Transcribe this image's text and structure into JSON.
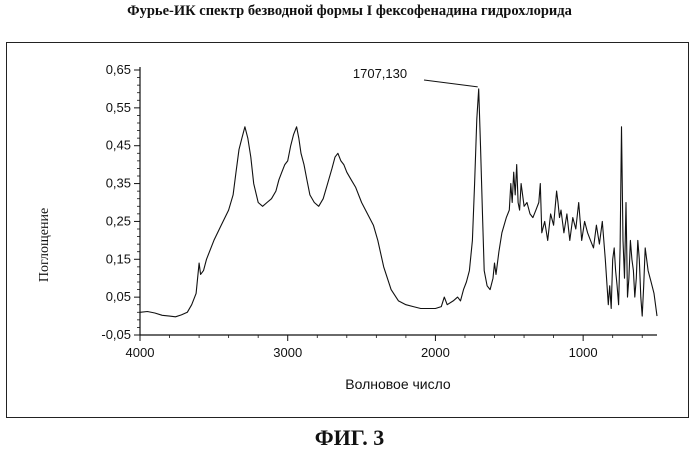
{
  "page_title": "Фурье-ИК спектр безводной формы I фексофенадина гидрохлорида",
  "figure_label": "ФИГ. 3",
  "chart_data": {
    "type": "line",
    "title": "Фурье-ИК спектр безводной формы I фексофенадина гидрохлорида",
    "xlabel": "Волновое число",
    "ylabel": "Поглощение",
    "xlim": [
      4000,
      500
    ],
    "ylim": [
      -0.05,
      0.65
    ],
    "x_reversed": true,
    "x_ticks": [
      {
        "value": 4000,
        "label": "4000"
      },
      {
        "value": 3000,
        "label": "3000"
      },
      {
        "value": 2000,
        "label": "2000"
      },
      {
        "value": 1000,
        "label": "1000"
      }
    ],
    "y_ticks": [
      {
        "value": 0.65,
        "label": "0,65"
      },
      {
        "value": 0.55,
        "label": "0,55"
      },
      {
        "value": 0.45,
        "label": "0,45"
      },
      {
        "value": 0.35,
        "label": "0,35"
      },
      {
        "value": 0.25,
        "label": "0,25"
      },
      {
        "value": 0.15,
        "label": "0,15"
      },
      {
        "value": 0.05,
        "label": "0,05"
      },
      {
        "value": -0.05,
        "label": "-0,05"
      }
    ],
    "annotation": {
      "text": "1707,130",
      "x": 1707,
      "y": 0.6
    },
    "grid": false,
    "series": [
      {
        "color": "#111111",
        "points": [
          [
            4000,
            0.01
          ],
          [
            3950,
            0.012
          ],
          [
            3900,
            0.008
          ],
          [
            3850,
            0.002
          ],
          [
            3800,
            0.0
          ],
          [
            3760,
            -0.002
          ],
          [
            3720,
            0.003
          ],
          [
            3680,
            0.01
          ],
          [
            3650,
            0.03
          ],
          [
            3620,
            0.06
          ],
          [
            3610,
            0.1
          ],
          [
            3600,
            0.14
          ],
          [
            3590,
            0.11
          ],
          [
            3570,
            0.12
          ],
          [
            3550,
            0.15
          ],
          [
            3500,
            0.2
          ],
          [
            3450,
            0.24
          ],
          [
            3400,
            0.28
          ],
          [
            3370,
            0.32
          ],
          [
            3350,
            0.38
          ],
          [
            3330,
            0.44
          ],
          [
            3310,
            0.47
          ],
          [
            3290,
            0.5
          ],
          [
            3270,
            0.47
          ],
          [
            3250,
            0.42
          ],
          [
            3230,
            0.35
          ],
          [
            3200,
            0.3
          ],
          [
            3170,
            0.29
          ],
          [
            3140,
            0.3
          ],
          [
            3110,
            0.31
          ],
          [
            3080,
            0.33
          ],
          [
            3060,
            0.36
          ],
          [
            3040,
            0.38
          ],
          [
            3020,
            0.4
          ],
          [
            3000,
            0.41
          ],
          [
            2980,
            0.45
          ],
          [
            2960,
            0.48
          ],
          [
            2940,
            0.5
          ],
          [
            2925,
            0.47
          ],
          [
            2910,
            0.43
          ],
          [
            2890,
            0.4
          ],
          [
            2870,
            0.36
          ],
          [
            2850,
            0.32
          ],
          [
            2820,
            0.3
          ],
          [
            2790,
            0.29
          ],
          [
            2760,
            0.31
          ],
          [
            2730,
            0.35
          ],
          [
            2700,
            0.39
          ],
          [
            2680,
            0.42
          ],
          [
            2660,
            0.43
          ],
          [
            2640,
            0.41
          ],
          [
            2620,
            0.4
          ],
          [
            2600,
            0.38
          ],
          [
            2570,
            0.36
          ],
          [
            2540,
            0.34
          ],
          [
            2500,
            0.3
          ],
          [
            2460,
            0.27
          ],
          [
            2420,
            0.24
          ],
          [
            2390,
            0.2
          ],
          [
            2350,
            0.13
          ],
          [
            2300,
            0.07
          ],
          [
            2250,
            0.04
          ],
          [
            2200,
            0.03
          ],
          [
            2150,
            0.025
          ],
          [
            2100,
            0.02
          ],
          [
            2050,
            0.02
          ],
          [
            2000,
            0.02
          ],
          [
            1960,
            0.025
          ],
          [
            1940,
            0.05
          ],
          [
            1920,
            0.03
          ],
          [
            1880,
            0.04
          ],
          [
            1850,
            0.05
          ],
          [
            1830,
            0.04
          ],
          [
            1810,
            0.07
          ],
          [
            1790,
            0.09
          ],
          [
            1770,
            0.12
          ],
          [
            1750,
            0.2
          ],
          [
            1735,
            0.35
          ],
          [
            1720,
            0.52
          ],
          [
            1707,
            0.6
          ],
          [
            1695,
            0.45
          ],
          [
            1680,
            0.25
          ],
          [
            1670,
            0.12
          ],
          [
            1650,
            0.08
          ],
          [
            1630,
            0.07
          ],
          [
            1610,
            0.1
          ],
          [
            1600,
            0.14
          ],
          [
            1590,
            0.11
          ],
          [
            1570,
            0.17
          ],
          [
            1550,
            0.22
          ],
          [
            1520,
            0.26
          ],
          [
            1500,
            0.28
          ],
          [
            1490,
            0.35
          ],
          [
            1480,
            0.3
          ],
          [
            1470,
            0.38
          ],
          [
            1460,
            0.32
          ],
          [
            1450,
            0.4
          ],
          [
            1440,
            0.3
          ],
          [
            1430,
            0.28
          ],
          [
            1420,
            0.35
          ],
          [
            1400,
            0.29
          ],
          [
            1380,
            0.3
          ],
          [
            1360,
            0.27
          ],
          [
            1340,
            0.26
          ],
          [
            1320,
            0.28
          ],
          [
            1300,
            0.3
          ],
          [
            1290,
            0.35
          ],
          [
            1280,
            0.22
          ],
          [
            1260,
            0.25
          ],
          [
            1240,
            0.2
          ],
          [
            1220,
            0.27
          ],
          [
            1200,
            0.24
          ],
          [
            1180,
            0.33
          ],
          [
            1170,
            0.3
          ],
          [
            1160,
            0.26
          ],
          [
            1150,
            0.28
          ],
          [
            1130,
            0.22
          ],
          [
            1110,
            0.27
          ],
          [
            1090,
            0.2
          ],
          [
            1070,
            0.26
          ],
          [
            1050,
            0.23
          ],
          [
            1030,
            0.3
          ],
          [
            1010,
            0.2
          ],
          [
            990,
            0.25
          ],
          [
            970,
            0.22
          ],
          [
            950,
            0.2
          ],
          [
            930,
            0.18
          ],
          [
            910,
            0.24
          ],
          [
            890,
            0.19
          ],
          [
            870,
            0.25
          ],
          [
            850,
            0.15
          ],
          [
            830,
            0.03
          ],
          [
            820,
            0.08
          ],
          [
            810,
            0.02
          ],
          [
            800,
            0.15
          ],
          [
            790,
            0.18
          ],
          [
            780,
            0.12
          ],
          [
            770,
            0.08
          ],
          [
            760,
            0.03
          ],
          [
            750,
            0.18
          ],
          [
            740,
            0.5
          ],
          [
            730,
            0.2
          ],
          [
            720,
            0.1
          ],
          [
            710,
            0.3
          ],
          [
            700,
            0.05
          ],
          [
            690,
            0.1
          ],
          [
            680,
            0.2
          ],
          [
            670,
            0.15
          ],
          [
            660,
            0.12
          ],
          [
            650,
            0.05
          ],
          [
            640,
            0.1
          ],
          [
            630,
            0.2
          ],
          [
            620,
            0.15
          ],
          [
            610,
            0.05
          ],
          [
            600,
            0.0
          ],
          [
            590,
            0.08
          ],
          [
            580,
            0.18
          ],
          [
            560,
            0.12
          ],
          [
            540,
            0.09
          ],
          [
            520,
            0.06
          ],
          [
            510,
            0.03
          ],
          [
            500,
            0.0
          ]
        ]
      }
    ]
  }
}
